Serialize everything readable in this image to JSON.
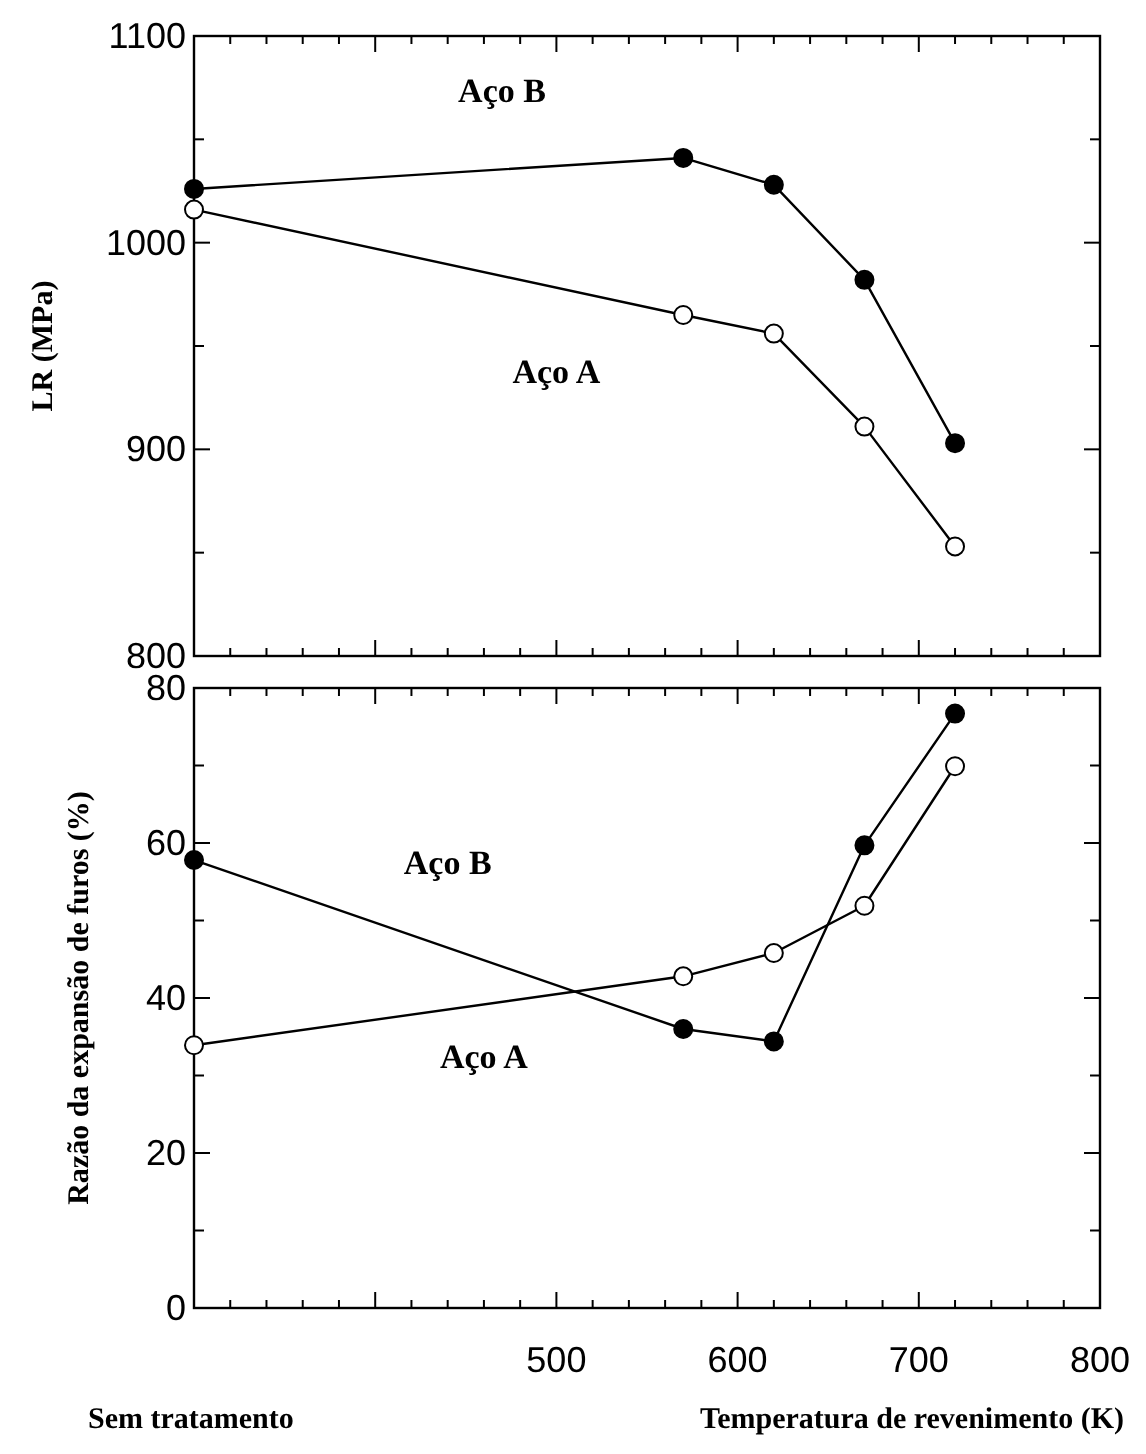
{
  "chart_data": [
    {
      "type": "line",
      "ylabel": "LR (MPa)",
      "x": [
        300,
        570,
        620,
        670,
        720
      ],
      "xlim": [
        300,
        800
      ],
      "xticks": [
        {
          "value": 300,
          "label": null
        },
        {
          "value": 400,
          "label": null
        },
        {
          "value": 500,
          "label": null
        },
        {
          "value": 600,
          "label": null
        },
        {
          "value": 700,
          "label": null
        },
        {
          "value": 800,
          "label": null
        }
      ],
      "ylim": [
        800,
        1100
      ],
      "yticks": [
        800,
        {
          "value": 850,
          "label": null
        },
        900,
        {
          "value": 950,
          "label": null
        },
        1000,
        {
          "value": 1050,
          "label": null
        },
        1100
      ],
      "tick_labels": "y",
      "marker": "circle",
      "line_style": "solid",
      "grid": false,
      "series": [
        {
          "name": "Aço B",
          "color": "#000000",
          "values": [
            1026,
            1041,
            1028,
            982,
            903
          ]
        },
        {
          "name": "Aço A",
          "color": "#000000",
          "values": [
            1016,
            965,
            956,
            911,
            853
          ]
        }
      ]
    },
    {
      "type": "line",
      "ylabel": "Razão da expansão de furos (%)",
      "xlabel": "Temperatura de revenimento  (K)",
      "annotations": [
        "Sem tratamento"
      ],
      "x": [
        300,
        570,
        620,
        670,
        720
      ],
      "xlim": [
        300,
        800
      ],
      "xticks": [
        {
          "value": 300,
          "label": null
        },
        {
          "value": 400,
          "label": null
        },
        500,
        600,
        700,
        800
      ],
      "ylim": [
        0,
        80
      ],
      "yticks": [
        0,
        {
          "value": 10,
          "label": null
        },
        20,
        {
          "value": 30,
          "label": null
        },
        40,
        {
          "value": 50,
          "label": null
        },
        60,
        {
          "value": 70,
          "label": null
        },
        80
      ],
      "marker": "circle",
      "line_style": "solid",
      "grid": false,
      "series": [
        {
          "name": "Aço B",
          "color": "#000000",
          "values": [
            57.8,
            36,
            34.4,
            59.7,
            76.7
          ]
        },
        {
          "name": "Aço A",
          "color": "#000000",
          "values": [
            33.9,
            42.8,
            45.8,
            51.9,
            69.9
          ]
        }
      ]
    }
  ]
}
